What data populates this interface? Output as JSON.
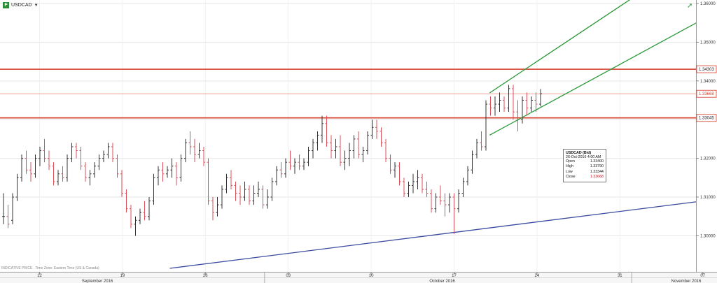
{
  "header": {
    "symbol": "USDCAD",
    "symbol_icon": "F",
    "dropdown_icon": "caret-down-icon",
    "trend_icon": "trend-up-arrow-icon"
  },
  "footer_note": "INDICATIVE PRICE . Time Zone: Eastern Time (US & Canada)",
  "ohlc_tooltip": {
    "title": "USDCAD (Bid)",
    "datetime": "26-Oct-2016 4:00 AM",
    "rows": [
      {
        "label": "Open",
        "value": "1.33400"
      },
      {
        "label": "High",
        "value": "1.33790"
      },
      {
        "label": "Low",
        "value": "1.33344"
      },
      {
        "label": "Close",
        "value": "1.33668"
      }
    ]
  },
  "colors": {
    "up_bar": "#333333",
    "down_bar": "#d9505a",
    "level_line": "#d6402c",
    "channel": "#2a9a3a",
    "trendline": "#3a4aa0",
    "grid": "#e6e6e6"
  },
  "chart_data": {
    "type": "ohlc",
    "y_axis": {
      "ticks": [
        "1.36000",
        "1.35000",
        "1.34000",
        "1.33000",
        "1.32000",
        "1.31000",
        "1.30000"
      ],
      "tick_values": [
        1.36,
        1.35,
        1.34,
        1.33,
        1.32,
        1.31,
        1.3
      ],
      "range": [
        1.2907,
        1.3609
      ]
    },
    "x_axis": {
      "day_ticks": [
        "12",
        "19",
        "26",
        "03",
        "10",
        "17",
        "24",
        "31",
        "07"
      ],
      "month_labels": [
        "September 2016",
        "October 2016",
        "November 2016"
      ]
    },
    "levels": [
      {
        "price": 1.34303,
        "label": "1.34303",
        "style": "solid"
      },
      {
        "price": 1.33668,
        "label": "1.33668",
        "style": "thin"
      },
      {
        "price": 1.33045,
        "label": "1.33045",
        "style": "solid"
      }
    ],
    "lines": [
      {
        "name": "upper-channel",
        "x": [
          "2016-10-20",
          "2016-11-01"
        ],
        "y": [
          1.3369,
          1.3613
        ]
      },
      {
        "name": "lower-channel",
        "x": [
          "2016-10-20",
          "2016-11-07"
        ],
        "y": [
          1.326,
          1.3559
        ]
      },
      {
        "name": "support-trendline",
        "x": [
          "2016-09-23",
          "2016-11-07"
        ],
        "y": [
          1.2916,
          1.309
        ]
      }
    ],
    "bars": [
      [
        1.305,
        1.311,
        1.303,
        1.305
      ],
      [
        1.305,
        1.308,
        1.302,
        1.303
      ],
      [
        1.304,
        1.311,
        1.303,
        1.31
      ],
      [
        1.31,
        1.316,
        1.309,
        1.315
      ],
      [
        1.315,
        1.321,
        1.314,
        1.32
      ],
      [
        1.32,
        1.322,
        1.316,
        1.317
      ],
      [
        1.317,
        1.319,
        1.314,
        1.316
      ],
      [
        1.316,
        1.321,
        1.315,
        1.32
      ],
      [
        1.32,
        1.323,
        1.318,
        1.322
      ],
      [
        1.322,
        1.325,
        1.319,
        1.32
      ],
      [
        1.32,
        1.322,
        1.317,
        1.318
      ],
      [
        1.318,
        1.319,
        1.313,
        1.314
      ],
      [
        1.314,
        1.317,
        1.313,
        1.316
      ],
      [
        1.316,
        1.318,
        1.314,
        1.315
      ],
      [
        1.315,
        1.321,
        1.314,
        1.32
      ],
      [
        1.32,
        1.324,
        1.319,
        1.323
      ],
      [
        1.323,
        1.324,
        1.32,
        1.322
      ],
      [
        1.322,
        1.323,
        1.317,
        1.318
      ],
      [
        1.318,
        1.319,
        1.314,
        1.315
      ],
      [
        1.315,
        1.317,
        1.313,
        1.316
      ],
      [
        1.316,
        1.319,
        1.315,
        1.318
      ],
      [
        1.318,
        1.321,
        1.317,
        1.32
      ],
      [
        1.32,
        1.322,
        1.319,
        1.321
      ],
      [
        1.321,
        1.324,
        1.32,
        1.323
      ],
      [
        1.323,
        1.324,
        1.319,
        1.32
      ],
      [
        1.32,
        1.321,
        1.315,
        1.316
      ],
      [
        1.316,
        1.317,
        1.31,
        1.311
      ],
      [
        1.311,
        1.312,
        1.306,
        1.307
      ],
      [
        1.307,
        1.308,
        1.302,
        1.303
      ],
      [
        1.303,
        1.305,
        1.3,
        1.304
      ],
      [
        1.304,
        1.307,
        1.303,
        1.306
      ],
      [
        1.306,
        1.309,
        1.304,
        1.305
      ],
      [
        1.305,
        1.31,
        1.304,
        1.309
      ],
      [
        1.309,
        1.316,
        1.308,
        1.315
      ],
      [
        1.315,
        1.318,
        1.313,
        1.317
      ],
      [
        1.317,
        1.319,
        1.314,
        1.316
      ],
      [
        1.316,
        1.318,
        1.315,
        1.317
      ],
      [
        1.317,
        1.32,
        1.315,
        1.318
      ],
      [
        1.318,
        1.319,
        1.313,
        1.315
      ],
      [
        1.315,
        1.321,
        1.314,
        1.32
      ],
      [
        1.32,
        1.325,
        1.319,
        1.324
      ],
      [
        1.324,
        1.327,
        1.321,
        1.323
      ],
      [
        1.323,
        1.325,
        1.319,
        1.321
      ],
      [
        1.321,
        1.324,
        1.32,
        1.322
      ],
      [
        1.322,
        1.323,
        1.318,
        1.319
      ],
      [
        1.319,
        1.32,
        1.308,
        1.309
      ],
      [
        1.309,
        1.31,
        1.304,
        1.306
      ],
      [
        1.306,
        1.31,
        1.305,
        1.308
      ],
      [
        1.308,
        1.313,
        1.307,
        1.312
      ],
      [
        1.312,
        1.316,
        1.311,
        1.315
      ],
      [
        1.315,
        1.317,
        1.312,
        1.313
      ],
      [
        1.313,
        1.314,
        1.309,
        1.311
      ],
      [
        1.311,
        1.313,
        1.308,
        1.31
      ],
      [
        1.31,
        1.314,
        1.309,
        1.312
      ],
      [
        1.312,
        1.313,
        1.308,
        1.309
      ],
      [
        1.309,
        1.313,
        1.308,
        1.311
      ],
      [
        1.311,
        1.314,
        1.31,
        1.312
      ],
      [
        1.312,
        1.313,
        1.307,
        1.308
      ],
      [
        1.308,
        1.312,
        1.307,
        1.31
      ],
      [
        1.31,
        1.315,
        1.309,
        1.314
      ],
      [
        1.314,
        1.318,
        1.313,
        1.317
      ],
      [
        1.317,
        1.319,
        1.315,
        1.316
      ],
      [
        1.316,
        1.32,
        1.315,
        1.319
      ],
      [
        1.319,
        1.322,
        1.317,
        1.318
      ],
      [
        1.318,
        1.32,
        1.316,
        1.319
      ],
      [
        1.319,
        1.321,
        1.317,
        1.318
      ],
      [
        1.318,
        1.32,
        1.317,
        1.319
      ],
      [
        1.319,
        1.323,
        1.318,
        1.322
      ],
      [
        1.322,
        1.325,
        1.32,
        1.324
      ],
      [
        1.324,
        1.327,
        1.322,
        1.326
      ],
      [
        1.326,
        1.331,
        1.324,
        1.329
      ],
      [
        1.329,
        1.331,
        1.323,
        1.324
      ],
      [
        1.324,
        1.326,
        1.32,
        1.322
      ],
      [
        1.322,
        1.325,
        1.32,
        1.323
      ],
      [
        1.323,
        1.326,
        1.318,
        1.319
      ],
      [
        1.319,
        1.322,
        1.317,
        1.32
      ],
      [
        1.32,
        1.324,
        1.318,
        1.322
      ],
      [
        1.322,
        1.326,
        1.32,
        1.325
      ],
      [
        1.325,
        1.327,
        1.32,
        1.321
      ],
      [
        1.321,
        1.323,
        1.319,
        1.322
      ],
      [
        1.322,
        1.327,
        1.321,
        1.326
      ],
      [
        1.326,
        1.33,
        1.325,
        1.328
      ],
      [
        1.328,
        1.33,
        1.325,
        1.327
      ],
      [
        1.327,
        1.328,
        1.323,
        1.324
      ],
      [
        1.324,
        1.325,
        1.319,
        1.32
      ],
      [
        1.32,
        1.321,
        1.316,
        1.317
      ],
      [
        1.317,
        1.319,
        1.315,
        1.318
      ],
      [
        1.318,
        1.319,
        1.313,
        1.314
      ],
      [
        1.314,
        1.315,
        1.31,
        1.311
      ],
      [
        1.311,
        1.314,
        1.31,
        1.313
      ],
      [
        1.313,
        1.316,
        1.311,
        1.314
      ],
      [
        1.314,
        1.317,
        1.312,
        1.315
      ],
      [
        1.315,
        1.316,
        1.311,
        1.312
      ],
      [
        1.312,
        1.314,
        1.31,
        1.311
      ],
      [
        1.311,
        1.312,
        1.306,
        1.307
      ],
      [
        1.307,
        1.311,
        1.306,
        1.31
      ],
      [
        1.31,
        1.313,
        1.308,
        1.309
      ],
      [
        1.309,
        1.311,
        1.305,
        1.308
      ],
      [
        1.308,
        1.311,
        1.306,
        1.31
      ],
      [
        1.31,
        1.311,
        1.3005,
        1.307
      ],
      [
        1.307,
        1.312,
        1.306,
        1.311
      ],
      [
        1.311,
        1.315,
        1.31,
        1.314
      ],
      [
        1.314,
        1.318,
        1.313,
        1.317
      ],
      [
        1.317,
        1.322,
        1.316,
        1.321
      ],
      [
        1.321,
        1.325,
        1.32,
        1.324
      ],
      [
        1.324,
        1.327,
        1.322,
        1.323
      ],
      [
        1.323,
        1.335,
        1.322,
        1.334
      ],
      [
        1.334,
        1.336,
        1.331,
        1.333
      ],
      [
        1.333,
        1.336,
        1.331,
        1.334
      ],
      [
        1.334,
        1.337,
        1.332,
        1.335
      ],
      [
        1.335,
        1.336,
        1.332,
        1.333
      ],
      [
        1.333,
        1.339,
        1.332,
        1.338
      ],
      [
        1.338,
        1.339,
        1.33,
        1.332
      ],
      [
        1.332,
        1.335,
        1.327,
        1.33
      ],
      [
        1.33,
        1.336,
        1.329,
        1.335
      ],
      [
        1.335,
        1.337,
        1.331,
        1.333
      ],
      [
        1.333,
        1.336,
        1.332,
        1.335
      ],
      [
        1.335,
        1.337,
        1.332,
        1.334
      ],
      [
        1.334,
        1.3379,
        1.3334,
        1.3367
      ]
    ]
  }
}
